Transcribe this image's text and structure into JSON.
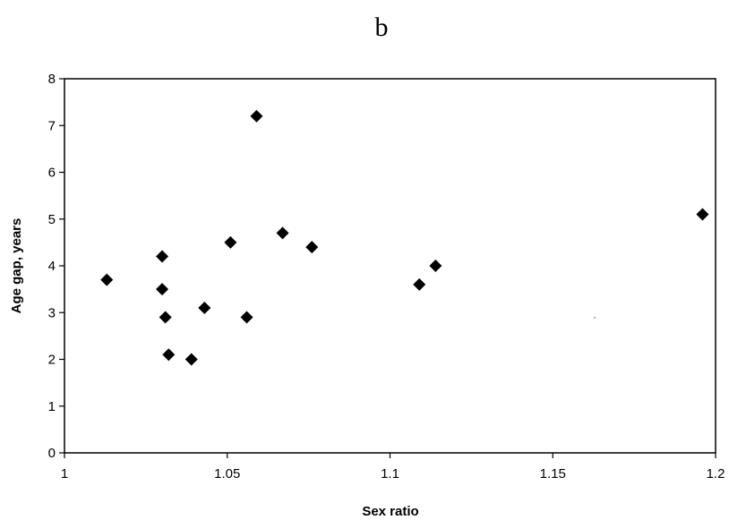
{
  "chart_data": {
    "type": "scatter",
    "title": "b",
    "xlabel": "Sex ratio",
    "ylabel": "Age gap, years",
    "xlim": [
      1,
      1.2
    ],
    "ylim": [
      0,
      8
    ],
    "xticks": [
      1,
      1.05,
      1.1,
      1.15,
      1.2
    ],
    "xtick_labels": [
      "1",
      "1.05",
      "1.1",
      "1.15",
      "1.2"
    ],
    "yticks": [
      0,
      1,
      2,
      3,
      4,
      5,
      6,
      7,
      8
    ],
    "ytick_labels": [
      "0",
      "1",
      "2",
      "3",
      "4",
      "5",
      "6",
      "7",
      "8"
    ],
    "grid": false,
    "marker": "diamond",
    "marker_color": "#000000",
    "points": [
      {
        "x": 1.013,
        "y": 3.7
      },
      {
        "x": 1.03,
        "y": 4.2
      },
      {
        "x": 1.03,
        "y": 3.5
      },
      {
        "x": 1.031,
        "y": 2.9
      },
      {
        "x": 1.032,
        "y": 2.1
      },
      {
        "x": 1.039,
        "y": 2.0
      },
      {
        "x": 1.043,
        "y": 3.1
      },
      {
        "x": 1.051,
        "y": 4.5
      },
      {
        "x": 1.056,
        "y": 2.9
      },
      {
        "x": 1.059,
        "y": 7.2
      },
      {
        "x": 1.067,
        "y": 4.7
      },
      {
        "x": 1.076,
        "y": 4.4
      },
      {
        "x": 1.109,
        "y": 3.6
      },
      {
        "x": 1.114,
        "y": 4.0
      },
      {
        "x": 1.196,
        "y": 5.1
      }
    ]
  }
}
